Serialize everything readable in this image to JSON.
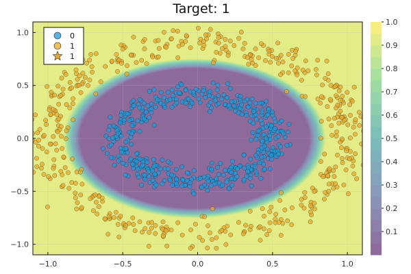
{
  "chart_data": {
    "type": "scatter",
    "title": "Target: 1",
    "xlabel": "",
    "ylabel": "",
    "xlim": [
      -1.1,
      1.1
    ],
    "ylim": [
      -1.1,
      1.1
    ],
    "xticks": [
      -1.0,
      -0.5,
      0.0,
      0.5,
      1.0
    ],
    "xtick_labels": [
      "−1.0",
      "−0.5",
      "0.0",
      "0.5",
      "1.0"
    ],
    "yticks": [
      -1.0,
      -0.5,
      0.0,
      0.5,
      1.0
    ],
    "ytick_labels": [
      "−1.0",
      "−0.5",
      "0.0",
      "0.5",
      "1.0"
    ],
    "grid": true,
    "legend": {
      "placement": "top-left",
      "entries": [
        {
          "label": "0",
          "marker": "circle",
          "color": "#1f98d8"
        },
        {
          "label": "1",
          "marker": "circle",
          "color": "#e8a92a"
        },
        {
          "label": "1",
          "marker": "star",
          "color": "#e8a92a"
        }
      ]
    },
    "background_contour": {
      "description": "predicted probability of target 1",
      "colormap": "viridis",
      "levels": [
        0.0,
        0.05,
        0.1,
        0.15,
        0.2,
        0.25,
        0.3,
        0.35,
        0.4,
        0.45,
        0.5,
        0.55,
        0.6,
        0.65,
        0.7,
        0.75,
        0.8,
        0.85,
        0.9,
        0.95,
        1.0
      ],
      "inner_region_value": 0.02,
      "outer_region_value": 0.93,
      "boundary_center": [
        -0.02,
        0.0
      ],
      "boundary_radii": [
        0.78,
        0.67
      ]
    },
    "colorbar": {
      "range": [
        0.0,
        1.0
      ],
      "ticks": [
        0.1,
        0.2,
        0.3,
        0.4,
        0.5,
        0.6,
        0.7,
        0.8,
        0.9,
        1.0
      ],
      "tick_labels": [
        "0.1",
        "0.2",
        "0.3",
        "0.4",
        "0.5",
        "0.6",
        "0.7",
        "0.8",
        "0.9",
        "1.0"
      ]
    },
    "series": [
      {
        "name": "0",
        "marker": "circle",
        "color": "#1f98d8",
        "description": "inner ring of points",
        "ring_center": [
          0.0,
          0.0
        ],
        "ring_radii": [
          0.5,
          0.4
        ],
        "ring_noise": 0.06,
        "count": 500
      },
      {
        "name": "1",
        "marker": "circle",
        "color": "#e8a92a",
        "description": "outer ring of points",
        "ring_center": [
          0.0,
          0.0
        ],
        "ring_radii": [
          1.0,
          0.9
        ],
        "ring_noise": 0.08,
        "count": 500
      }
    ]
  },
  "colors": {
    "background": "#ffffff",
    "frame": "#111111",
    "grid": "#bbbbbb"
  }
}
